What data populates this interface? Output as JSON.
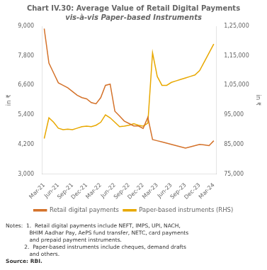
{
  "chart_data": {
    "type": "line",
    "title": "Chart IV.30: Average Value of Retail Digital Payments",
    "subtitle": "vis-à-vis Paper-based Instruments",
    "ylabel": "in ₹",
    "y2label": "in ₹",
    "categories": [
      "Mar-21",
      null,
      null,
      "Jun-21",
      null,
      null,
      "Sep-21",
      null,
      null,
      "Dec-21",
      null,
      null,
      "Mar-22",
      null,
      null,
      "Jun-22",
      null,
      null,
      "Sep-22",
      null,
      null,
      "Dec-22",
      null,
      null,
      "Mar-23",
      null,
      null,
      "Jun-23",
      null,
      null,
      "Sep-23",
      null,
      null,
      "Dec-23",
      null,
      null,
      "Mar-24"
    ],
    "series": [
      {
        "name": "Retail digital payments",
        "color": "#d4722a",
        "values": [
          8900,
          7500,
          7100,
          6700,
          6600,
          6500,
          6350,
          6200,
          6100,
          6050,
          5900,
          5850,
          6100,
          6600,
          6650,
          5550,
          5350,
          5150,
          5050,
          4950,
          4950,
          4850,
          5300,
          4400,
          4350,
          4300,
          4250,
          4200,
          4150,
          4100,
          4050,
          4100,
          4150,
          4200,
          4180,
          4150,
          4350
        ]
      },
      {
        "name": "Paper-based instruments (RHS)",
        "color": "#e8a800",
        "axis": "y2",
        "values": [
          87000,
          94000,
          92500,
          90500,
          90000,
          90200,
          90000,
          90500,
          91000,
          91200,
          91000,
          91500,
          92500,
          95000,
          94000,
          92500,
          91000,
          91200,
          91500,
          92000,
          91500,
          91200,
          92200,
          116000,
          108000,
          105000,
          105000,
          106000,
          106500,
          107000,
          107500,
          108000,
          108500,
          110000,
          113000,
          116000,
          119000
        ]
      }
    ],
    "ylim": [
      3000,
      9000
    ],
    "yticks": [
      {
        "value": 3000,
        "label": "3,000"
      },
      {
        "value": 4200,
        "label": "4,200"
      },
      {
        "value": 5400,
        "label": "5,400"
      },
      {
        "value": 6600,
        "label": "6,600"
      },
      {
        "value": 7800,
        "label": "7,800"
      },
      {
        "value": 9000,
        "label": "9,000"
      }
    ],
    "y2lim": [
      75000,
      125000
    ],
    "y2ticks": [
      {
        "value": 75000,
        "label": "75,000"
      },
      {
        "value": 85000,
        "label": "85,000"
      },
      {
        "value": 95000,
        "label": "95,000"
      },
      {
        "value": 105000,
        "label": "1,05,000"
      },
      {
        "value": 115000,
        "label": "1,15,000"
      },
      {
        "value": 125000,
        "label": "1,25,000"
      }
    ],
    "grid": false,
    "legend": "bottom",
    "annotations": [
      "Notes:  1.  Retail digital payments include NEFT, IMPS, UPI, NACH,\n              BHIM Aadhar Pay, AePS fund transfer, NETC, card payments\n              and prepaid payment instruments.\n           2.  Paper-based instruments include cheques, demand drafts\n              and others.",
      "Source: RBI."
    ]
  }
}
